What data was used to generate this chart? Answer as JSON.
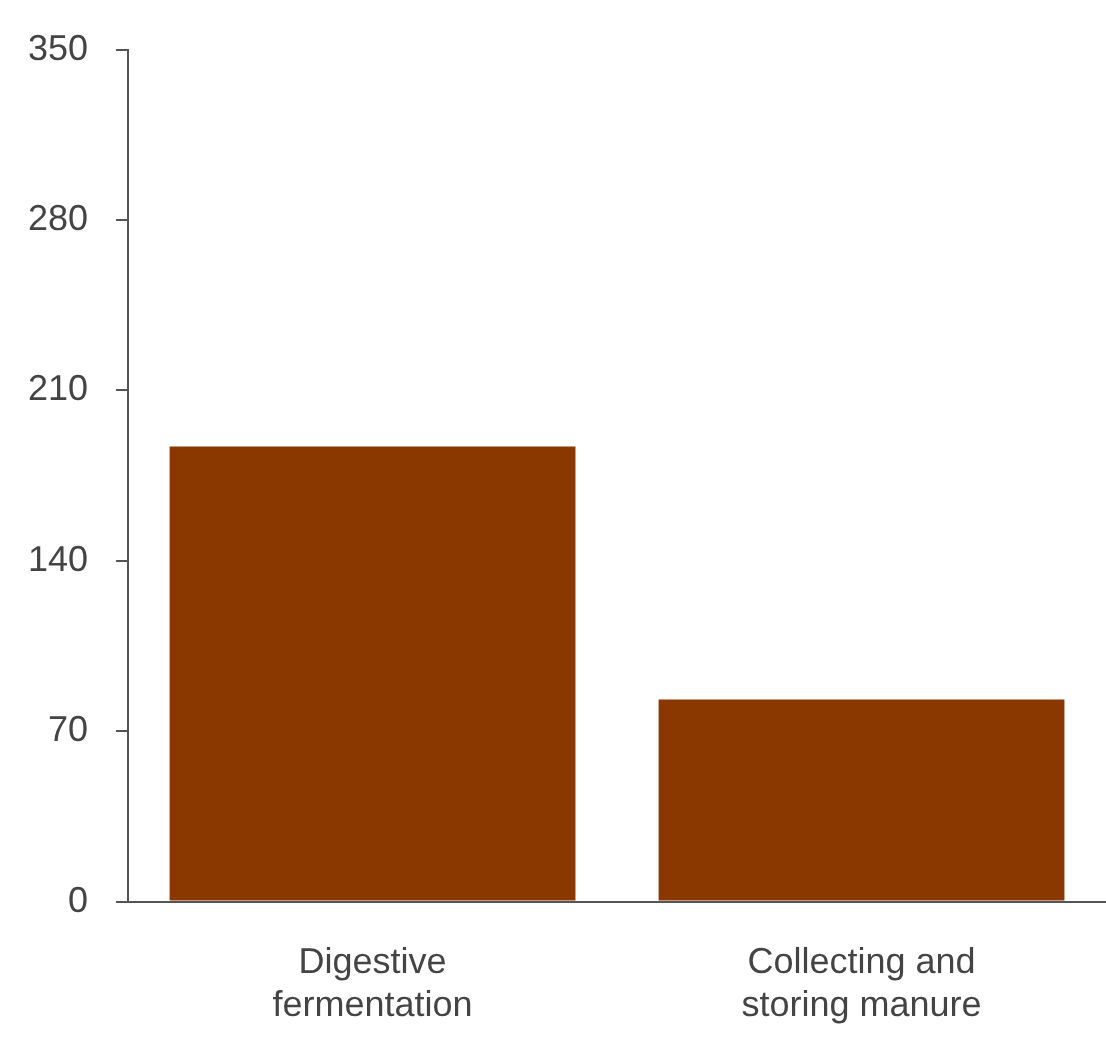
{
  "chart_data": {
    "type": "bar",
    "categories": [
      "Digestive fermentation",
      "Collecting and storing manure"
    ],
    "values": [
      187,
      83
    ],
    "color": "#8b3800",
    "ylim": [
      0,
      350
    ],
    "yticks": [
      0,
      70,
      140,
      210,
      280,
      350
    ],
    "grid": false,
    "legend": false
  }
}
